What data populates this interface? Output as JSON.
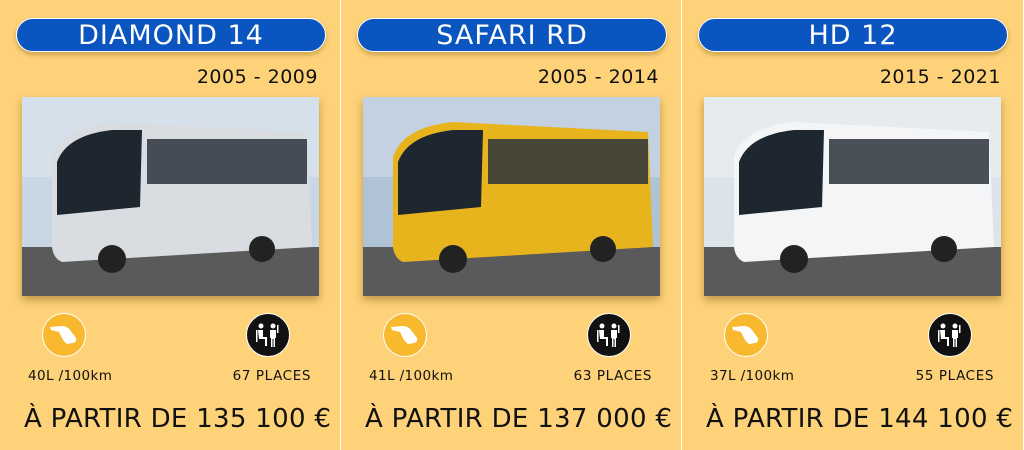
{
  "colors": {
    "background": "#FDD278",
    "pill": "#0A55C0",
    "fuel_icon": "#F8B92E",
    "people_icon": "#111111"
  },
  "cards": [
    {
      "model": "DIAMOND 14",
      "years": "2005 - 2009",
      "fuel": "40L /100km",
      "seats": "67 PLACES",
      "price": "À PARTIR DE 135 100 €",
      "bus_color": "#D9DDE2",
      "sky": "#C9D6E4"
    },
    {
      "model": "SAFARI RD",
      "years": "2005 - 2014",
      "fuel": "41L /100km",
      "seats": "63 PLACES",
      "price": "À PARTIR DE 137 000 €",
      "bus_color": "#E8B41E",
      "sky": "#AFC2D6"
    },
    {
      "model": "HD 12",
      "years": "2015 - 2021",
      "fuel": "37L /100km",
      "seats": "55 PLACES",
      "price": "À PARTIR DE 144 100 €",
      "bus_color": "#F4F5F6",
      "sky": "#DCE4EA"
    }
  ]
}
